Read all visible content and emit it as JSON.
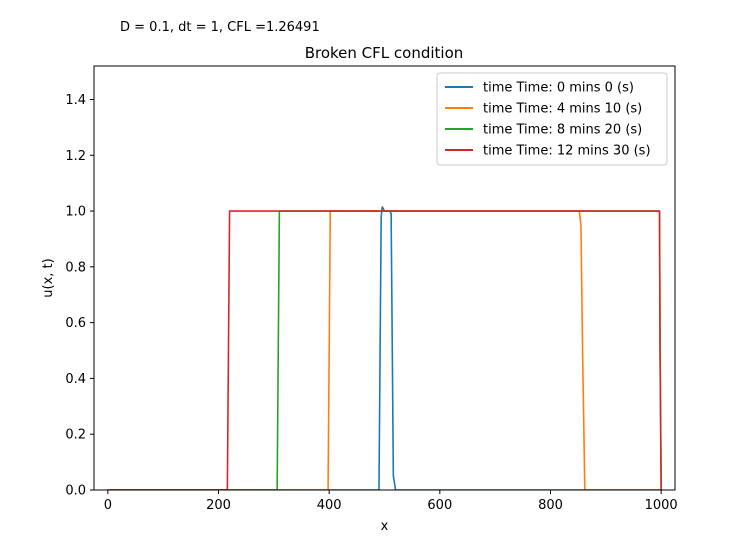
{
  "chart_data": {
    "type": "line",
    "annotation": "D = 0.1, dt = 1, CFL =1.26491",
    "title": "Broken CFL condition",
    "xlabel": "x",
    "ylabel": "u(x, t)",
    "xlim": [
      -25,
      1025
    ],
    "ylim": [
      0,
      1.52
    ],
    "xticks": [
      0,
      200,
      400,
      600,
      800,
      1000
    ],
    "xtick_labels": [
      "0",
      "200",
      "400",
      "600",
      "800",
      "1000"
    ],
    "yticks": [
      0,
      0.2,
      0.4,
      0.6,
      0.8,
      1.0,
      1.2,
      1.4
    ],
    "ytick_labels": [
      "0.0",
      "0.2",
      "0.4",
      "0.6",
      "0.8",
      "1.0",
      "1.2",
      "1.4"
    ],
    "grid": false,
    "legend_position": "top-right",
    "series": [
      {
        "name": "time Time: 0 mins 0 (s)",
        "color": "#1f77b4",
        "x": [
          0,
          490,
          494,
          496,
          500,
          505,
          510,
          512,
          516,
          520,
          1000
        ],
        "y": [
          0,
          0,
          0.98,
          1.015,
          1.0,
          1.0,
          1.0,
          0.99,
          0.05,
          0,
          0
        ]
      },
      {
        "name": "time Time: 4 mins 10 (s)",
        "color": "#ff7f0e",
        "x": [
          0,
          398,
          400,
          402,
          404,
          850,
          852,
          855,
          858,
          862,
          1000
        ],
        "y": [
          0,
          0,
          0.5,
          1.0,
          1.0,
          1.0,
          1.0,
          0.95,
          0.5,
          0,
          0
        ]
      },
      {
        "name": "time Time: 8 mins 20 (s)",
        "color": "#2ca02c",
        "x": [
          0,
          306,
          308,
          310,
          312,
          995,
          997,
          998,
          1000
        ],
        "y": [
          0,
          0,
          0.5,
          1.0,
          1.0,
          1.0,
          1.0,
          0.5,
          0
        ]
      },
      {
        "name": "time Time: 12 mins 30 (s)",
        "color": "#d62728",
        "x": [
          0,
          216,
          218,
          220,
          222,
          995,
          997,
          998,
          1000
        ],
        "y": [
          0,
          0,
          0.5,
          1.0,
          1.0,
          1.0,
          1.0,
          0.5,
          0
        ]
      }
    ]
  }
}
